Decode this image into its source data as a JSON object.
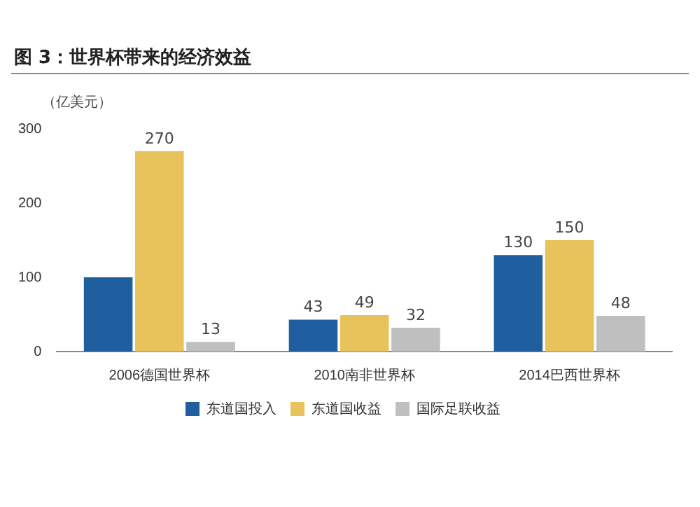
{
  "chart_data": {
    "type": "bar",
    "title": "图 3：世界杯带来的经济效益",
    "ylabel": "（亿美元）",
    "categories": [
      "2006德国世界杯",
      "2010南非世界杯",
      "2014巴西世界杯"
    ],
    "series": [
      {
        "name": "东道国投入",
        "color": "#1f5f9f",
        "values": [
          100,
          43,
          130
        ],
        "value_labels": [
          null,
          "43",
          "130"
        ]
      },
      {
        "name": "东道国收益",
        "color": "#e8c25a",
        "values": [
          270,
          49,
          150
        ],
        "value_labels": [
          "270",
          "49",
          "150"
        ]
      },
      {
        "name": "国际足联收益",
        "color": "#bfbfbf",
        "values": [
          13,
          32,
          48
        ],
        "value_labels": [
          "13",
          "32",
          "48"
        ]
      }
    ],
    "ylim": [
      0,
      300
    ],
    "yticks": [
      0,
      100,
      200,
      300
    ],
    "grid": false,
    "legend": "bottom"
  }
}
